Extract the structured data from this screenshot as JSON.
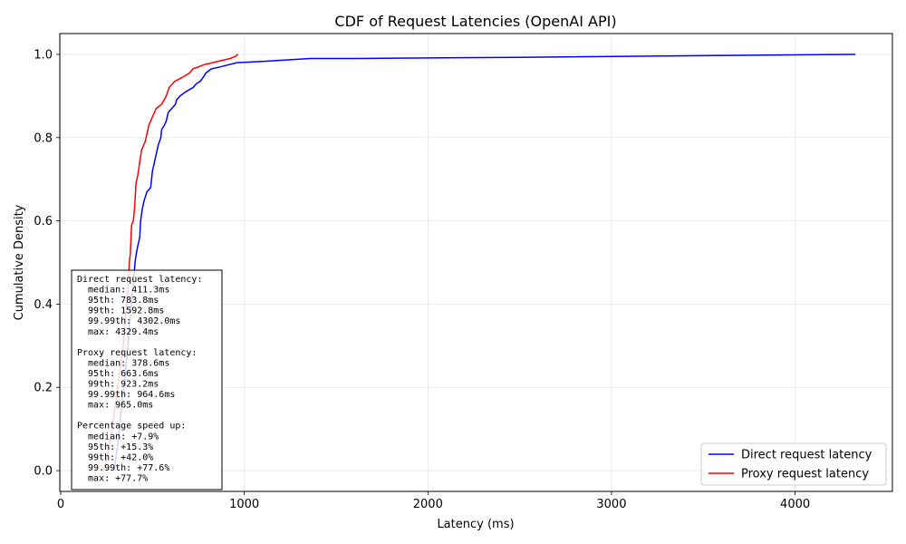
{
  "chart_data": {
    "type": "line",
    "title": "CDF of Request Latencies (OpenAI API)",
    "xlabel": "Latency (ms)",
    "ylabel": "Cumulative Density",
    "xlim": [
      -5,
      4530
    ],
    "ylim": [
      -0.05,
      1.05
    ],
    "x_ticks": [
      0,
      1000,
      2000,
      3000,
      4000
    ],
    "x_tick_labels": [
      "0",
      "1000",
      "2000",
      "3000",
      "4000"
    ],
    "y_ticks": [
      0.0,
      0.2,
      0.4,
      0.6,
      0.8,
      1.0
    ],
    "y_tick_labels": [
      "0.0",
      "0.2",
      "0.4",
      "0.6",
      "0.8",
      "1.0"
    ],
    "grid": true,
    "legend_position": "bottom-right",
    "series": [
      {
        "name": "Direct request latency",
        "color": "#0000ff",
        "points": [
          [
            290,
            0.0
          ],
          [
            300,
            0.03
          ],
          [
            310,
            0.06
          ],
          [
            320,
            0.1
          ],
          [
            330,
            0.15
          ],
          [
            345,
            0.2
          ],
          [
            355,
            0.25
          ],
          [
            365,
            0.3
          ],
          [
            375,
            0.35
          ],
          [
            385,
            0.4
          ],
          [
            395,
            0.45
          ],
          [
            405,
            0.5
          ],
          [
            411,
            0.52
          ],
          [
            420,
            0.54
          ],
          [
            430,
            0.56
          ],
          [
            435,
            0.6
          ],
          [
            445,
            0.63
          ],
          [
            455,
            0.65
          ],
          [
            470,
            0.67
          ],
          [
            490,
            0.68
          ],
          [
            495,
            0.7
          ],
          [
            500,
            0.72
          ],
          [
            510,
            0.74
          ],
          [
            520,
            0.76
          ],
          [
            530,
            0.78
          ],
          [
            545,
            0.8
          ],
          [
            550,
            0.82
          ],
          [
            565,
            0.83
          ],
          [
            575,
            0.84
          ],
          [
            585,
            0.86
          ],
          [
            605,
            0.87
          ],
          [
            625,
            0.88
          ],
          [
            630,
            0.89
          ],
          [
            650,
            0.9
          ],
          [
            680,
            0.91
          ],
          [
            720,
            0.92
          ],
          [
            740,
            0.93
          ],
          [
            760,
            0.935
          ],
          [
            784,
            0.95
          ],
          [
            790,
            0.955
          ],
          [
            820,
            0.965
          ],
          [
            870,
            0.97
          ],
          [
            960,
            0.98
          ],
          [
            1100,
            0.983
          ],
          [
            1360,
            0.99
          ],
          [
            1593,
            0.99
          ],
          [
            2500,
            0.993
          ],
          [
            4302,
            0.9999
          ],
          [
            4329,
            1.0
          ]
        ]
      },
      {
        "name": "Proxy request latency",
        "color": "#ff0000",
        "points": [
          [
            235,
            0.0
          ],
          [
            250,
            0.03
          ],
          [
            265,
            0.06
          ],
          [
            280,
            0.1
          ],
          [
            295,
            0.15
          ],
          [
            310,
            0.2
          ],
          [
            325,
            0.25
          ],
          [
            340,
            0.3
          ],
          [
            350,
            0.35
          ],
          [
            360,
            0.4
          ],
          [
            368,
            0.45
          ],
          [
            374,
            0.5
          ],
          [
            379,
            0.52
          ],
          [
            382,
            0.55
          ],
          [
            386,
            0.59
          ],
          [
            395,
            0.6
          ],
          [
            400,
            0.62
          ],
          [
            405,
            0.65
          ],
          [
            410,
            0.69
          ],
          [
            420,
            0.71
          ],
          [
            430,
            0.74
          ],
          [
            440,
            0.77
          ],
          [
            460,
            0.79
          ],
          [
            470,
            0.81
          ],
          [
            480,
            0.83
          ],
          [
            500,
            0.85
          ],
          [
            520,
            0.87
          ],
          [
            550,
            0.88
          ],
          [
            575,
            0.9
          ],
          [
            590,
            0.92
          ],
          [
            620,
            0.935
          ],
          [
            664,
            0.945
          ],
          [
            700,
            0.955
          ],
          [
            720,
            0.965
          ],
          [
            780,
            0.975
          ],
          [
            923,
            0.99
          ],
          [
            950,
            0.995
          ],
          [
            964.6,
            0.9999
          ],
          [
            965,
            1.0
          ]
        ]
      }
    ],
    "annotation_lines": [
      "Direct request latency:",
      "  median: 411.3ms",
      "  95th: 783.8ms",
      "  99th: 1592.8ms",
      "  99.99th: 4302.0ms",
      "  max: 4329.4ms",
      "",
      "Proxy request latency:",
      "  median: 378.6ms",
      "  95th: 663.6ms",
      "  99th: 923.2ms",
      "  99.99th: 964.6ms",
      "  max: 965.0ms",
      "",
      "Percentage speed up:",
      "  median: +7.9%",
      "  95th: +15.3%",
      "  99th: +42.0%",
      "  99.99th: +77.6%",
      "  max: +77.7%"
    ]
  }
}
